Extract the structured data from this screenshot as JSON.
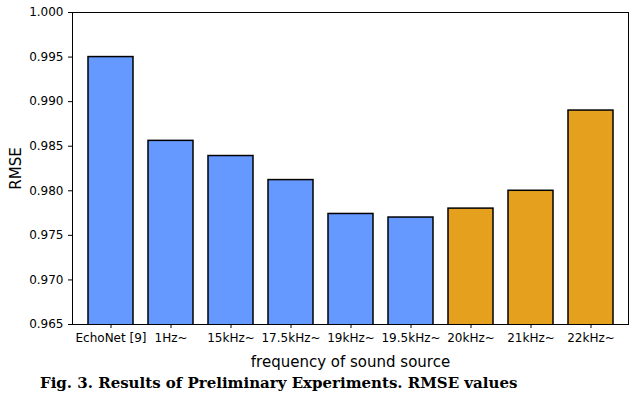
{
  "chart_data": {
    "type": "bar",
    "title": "Fig. 3. Results of Preliminary Experiments. RMSE values",
    "x_label": "frequency of sound source",
    "y_label": "RMSE",
    "categories": [
      "EchoNet [9]",
      "1Hz~",
      "15kHz~",
      "17.5kHz~",
      "19kHz~",
      "19.5kHz~",
      "20kHz~",
      "21kHz~",
      "22kHz~"
    ],
    "values": [
      0.995,
      0.9856,
      0.9839,
      0.9812,
      0.9774,
      0.977,
      0.978,
      0.98,
      0.989
    ],
    "colors": [
      "#6699ff",
      "#6699ff",
      "#6699ff",
      "#6699ff",
      "#6699ff",
      "#6699ff",
      "#e5a11d",
      "#e5a11d",
      "#e5a11d"
    ],
    "ylim": [
      0.965,
      1.0
    ],
    "yticks": [
      0.965,
      {
        "value": 0.97,
        "label": "0.970"
      },
      0.975,
      {
        "value": 0.98,
        "label": "0.980"
      },
      0.985,
      {
        "value": 0.99,
        "label": "0.990"
      },
      0.995,
      {
        "value": 1.0,
        "label": "1.000"
      }
    ],
    "grid": false,
    "data_labels": false
  }
}
